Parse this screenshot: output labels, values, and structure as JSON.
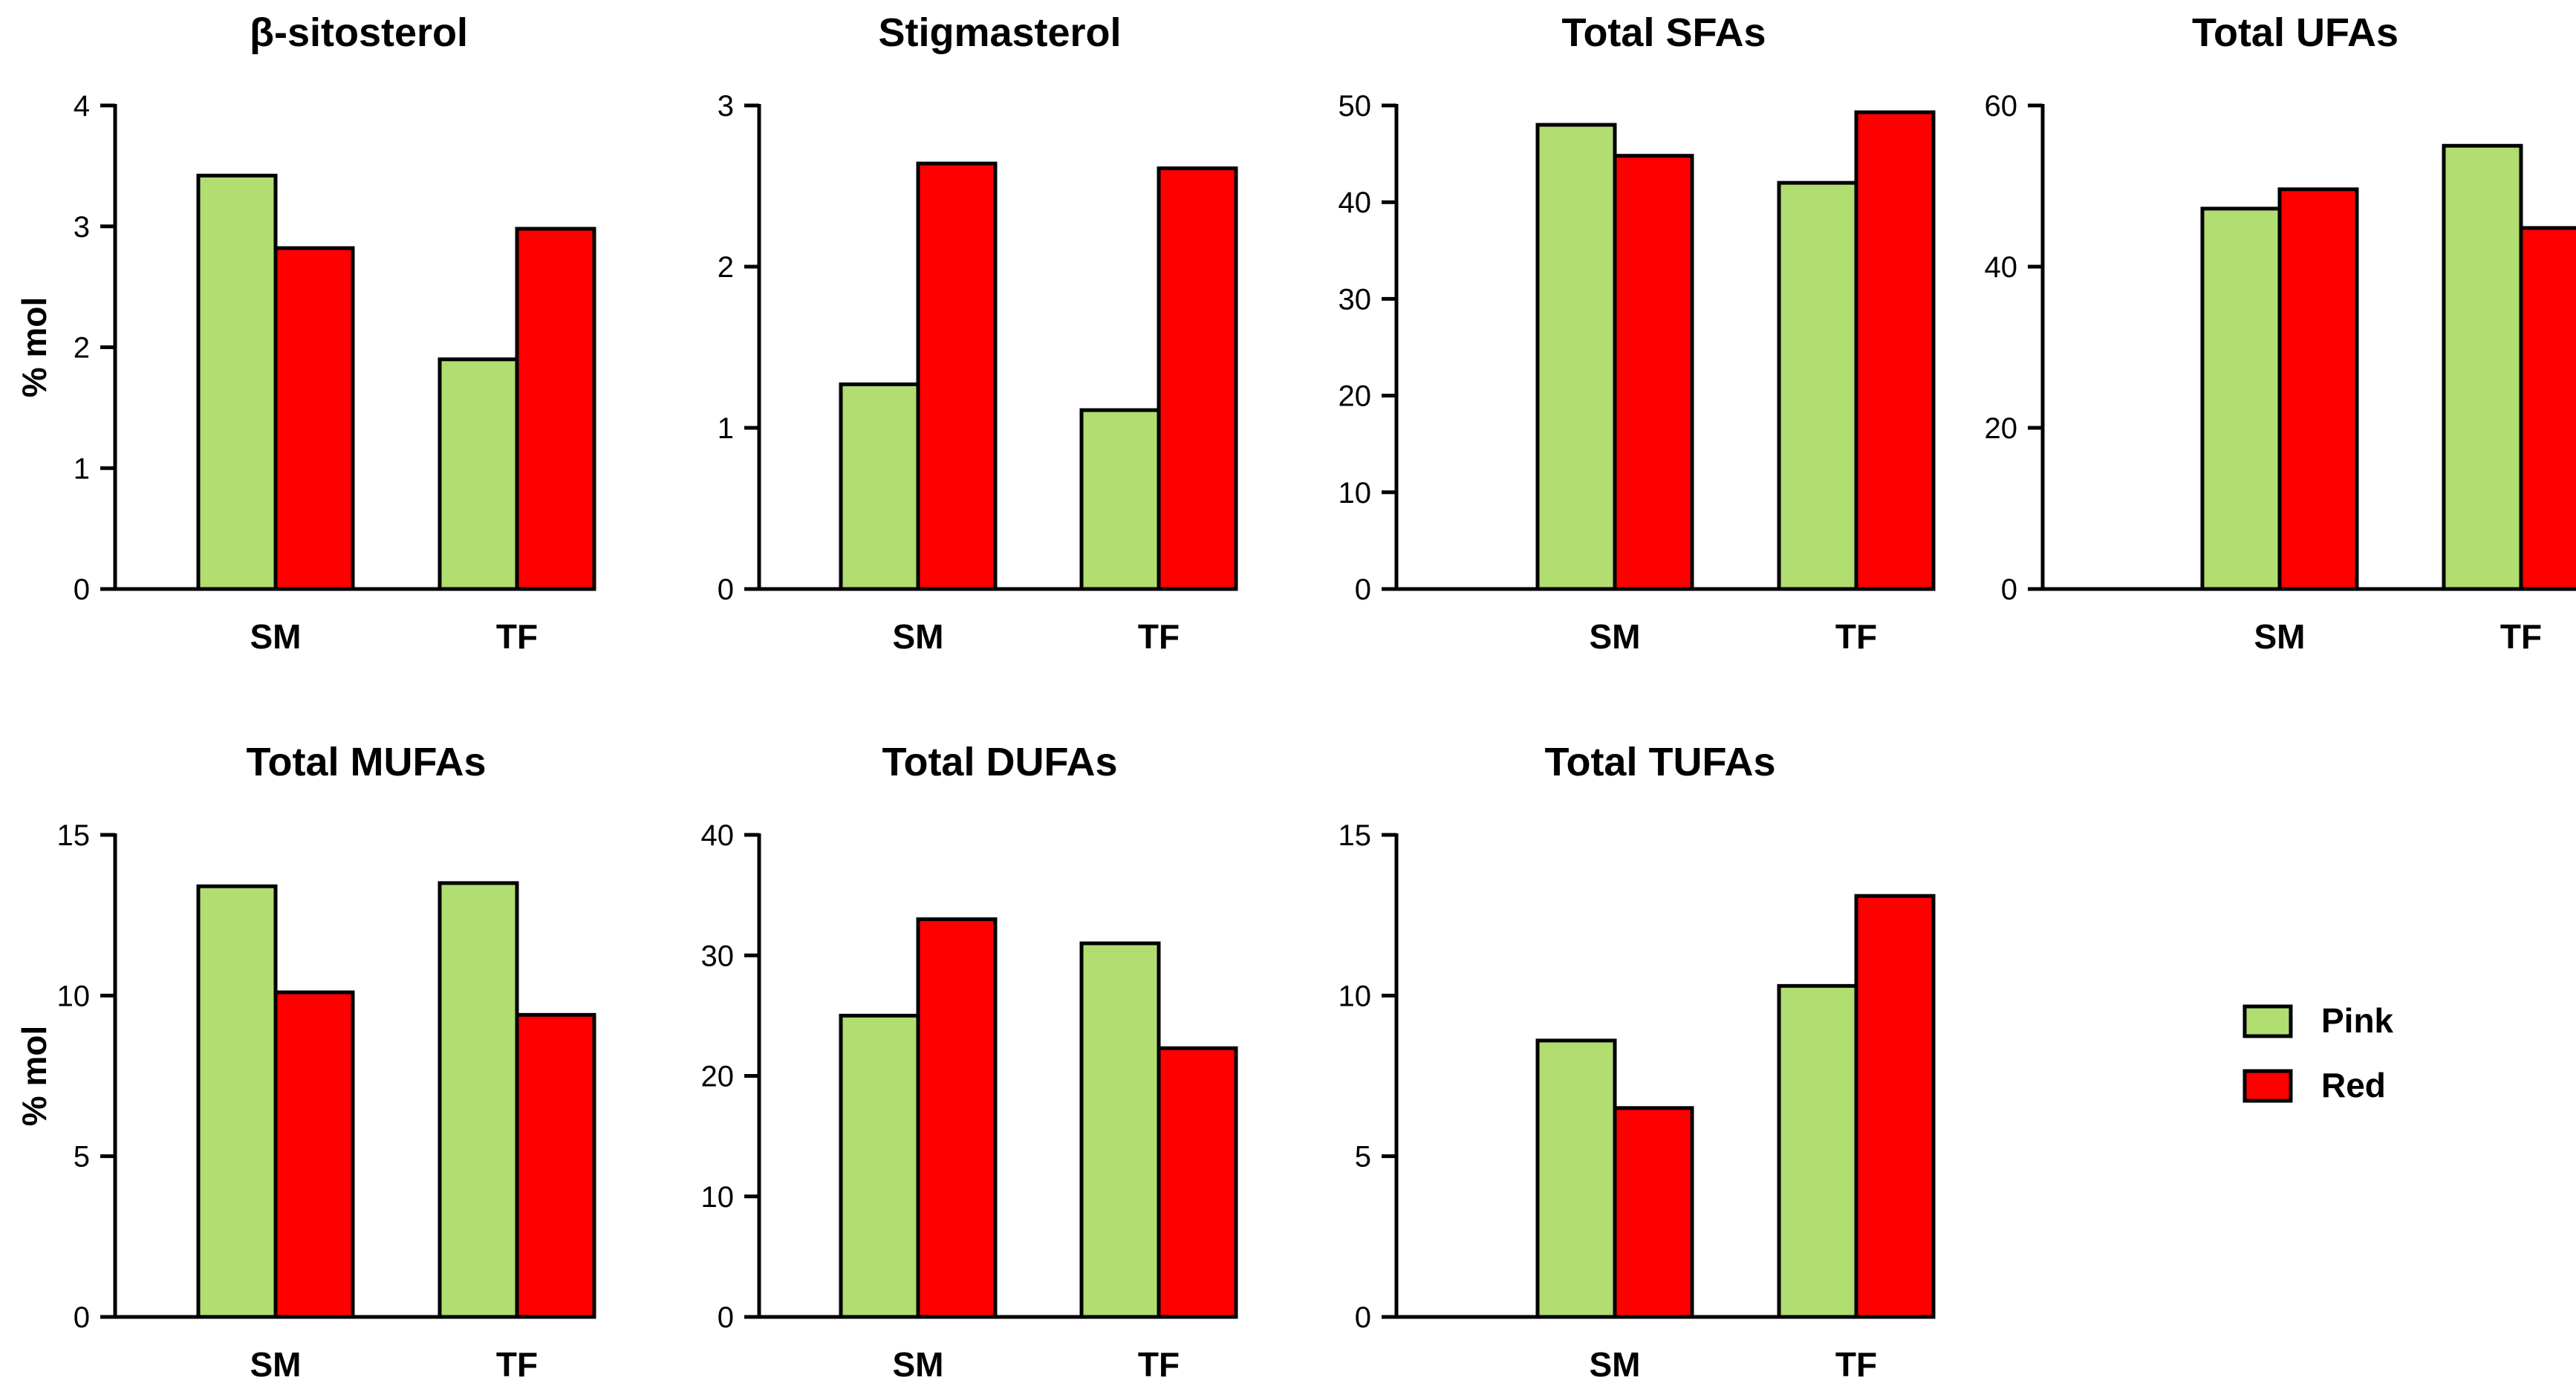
{
  "colors": {
    "pink": "#b1dd71",
    "red": "#ff0000",
    "axis": "#000000",
    "background": "#ffffff"
  },
  "legend": [
    {
      "name": "Pink",
      "color": "#b1dd71"
    },
    {
      "name": "Red",
      "color": "#ff0000"
    }
  ],
  "chart_data": [
    {
      "type": "bar",
      "title": "β-sitosterol",
      "xlabel": "",
      "ylabel": "% mol",
      "ylim": [
        0,
        4
      ],
      "yticks": [
        0,
        1,
        2,
        3,
        4
      ],
      "categories": [
        "SM",
        "TF"
      ],
      "series": [
        {
          "name": "Pink",
          "values": [
            3.42,
            1.9
          ]
        },
        {
          "name": "Red",
          "values": [
            2.82,
            2.98
          ]
        }
      ]
    },
    {
      "type": "bar",
      "title": "Stigmasterol",
      "xlabel": "",
      "ylabel": "",
      "ylim": [
        0,
        3
      ],
      "yticks": [
        0,
        1,
        2,
        3
      ],
      "categories": [
        "SM",
        "TF"
      ],
      "series": [
        {
          "name": "Pink",
          "values": [
            1.27,
            1.11
          ]
        },
        {
          "name": "Red",
          "values": [
            2.64,
            2.61
          ]
        }
      ]
    },
    {
      "type": "bar",
      "title": "Total SFAs",
      "xlabel": "",
      "ylabel": "",
      "ylim": [
        0,
        50
      ],
      "yticks": [
        0,
        10,
        20,
        30,
        40,
        50
      ],
      "categories": [
        "SM",
        "TF"
      ],
      "series": [
        {
          "name": "Pink",
          "values": [
            48,
            42
          ]
        },
        {
          "name": "Red",
          "values": [
            44.8,
            49.3
          ]
        }
      ]
    },
    {
      "type": "bar",
      "title": "Total UFAs",
      "xlabel": "",
      "ylabel": "",
      "ylim": [
        0,
        60
      ],
      "yticks": [
        0,
        20,
        40,
        60
      ],
      "categories": [
        "SM",
        "TF"
      ],
      "series": [
        {
          "name": "Pink",
          "values": [
            47.2,
            55
          ]
        },
        {
          "name": "Red",
          "values": [
            49.6,
            44.8
          ]
        }
      ]
    },
    {
      "type": "bar",
      "title": "Total MUFAs",
      "xlabel": "",
      "ylabel": "% mol",
      "ylim": [
        0,
        15
      ],
      "yticks": [
        0,
        5,
        10,
        15
      ],
      "categories": [
        "SM",
        "TF"
      ],
      "series": [
        {
          "name": "Pink",
          "values": [
            13.4,
            13.5
          ]
        },
        {
          "name": "Red",
          "values": [
            10.1,
            9.4
          ]
        }
      ]
    },
    {
      "type": "bar",
      "title": "Total DUFAs",
      "xlabel": "",
      "ylabel": "",
      "ylim": [
        0,
        40
      ],
      "yticks": [
        0,
        10,
        20,
        30,
        40
      ],
      "categories": [
        "SM",
        "TF"
      ],
      "series": [
        {
          "name": "Pink",
          "values": [
            25,
            31
          ]
        },
        {
          "name": "Red",
          "values": [
            33,
            22.3
          ]
        }
      ]
    },
    {
      "type": "bar",
      "title": "Total TUFAs",
      "xlabel": "",
      "ylabel": "",
      "ylim": [
        0,
        15
      ],
      "yticks": [
        0,
        5,
        10,
        15
      ],
      "categories": [
        "SM",
        "TF"
      ],
      "series": [
        {
          "name": "Pink",
          "values": [
            8.6,
            10.3
          ]
        },
        {
          "name": "Red",
          "values": [
            6.5,
            13.1
          ]
        }
      ]
    }
  ]
}
